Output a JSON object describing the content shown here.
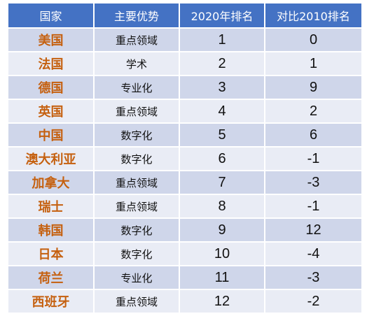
{
  "table": {
    "headers": [
      "国家",
      "主要优势",
      "2020年排名",
      "对比2010排名"
    ],
    "rows": [
      {
        "country": "美国",
        "advantage": "重点领域",
        "rank_2020": "1",
        "vs_2010": "0"
      },
      {
        "country": "法国",
        "advantage": "学术",
        "rank_2020": "2",
        "vs_2010": "1"
      },
      {
        "country": "德国",
        "advantage": "专业化",
        "rank_2020": "3",
        "vs_2010": "9"
      },
      {
        "country": "英国",
        "advantage": "重点领域",
        "rank_2020": "4",
        "vs_2010": "2"
      },
      {
        "country": "中国",
        "advantage": "数字化",
        "rank_2020": "5",
        "vs_2010": "6"
      },
      {
        "country": "澳大利亚",
        "advantage": "数字化",
        "rank_2020": "6",
        "vs_2010": "-1"
      },
      {
        "country": "加拿大",
        "advantage": "重点领域",
        "rank_2020": "7",
        "vs_2010": "-3"
      },
      {
        "country": "瑞士",
        "advantage": "重点领域",
        "rank_2020": "8",
        "vs_2010": "-1"
      },
      {
        "country": "韩国",
        "advantage": "数字化",
        "rank_2020": "9",
        "vs_2010": "12"
      },
      {
        "country": "日本",
        "advantage": "数字化",
        "rank_2020": "10",
        "vs_2010": "-4"
      },
      {
        "country": "荷兰",
        "advantage": "专业化",
        "rank_2020": "11",
        "vs_2010": "-3"
      },
      {
        "country": "西班牙",
        "advantage": "重点领域",
        "rank_2020": "12",
        "vs_2010": "-2"
      }
    ]
  },
  "colors": {
    "header_bg": "#4472c4",
    "header_text": "#ffffff",
    "row_odd": "#cfd6ea",
    "row_even": "#e9ecf5",
    "country_text": "#c5600f"
  }
}
